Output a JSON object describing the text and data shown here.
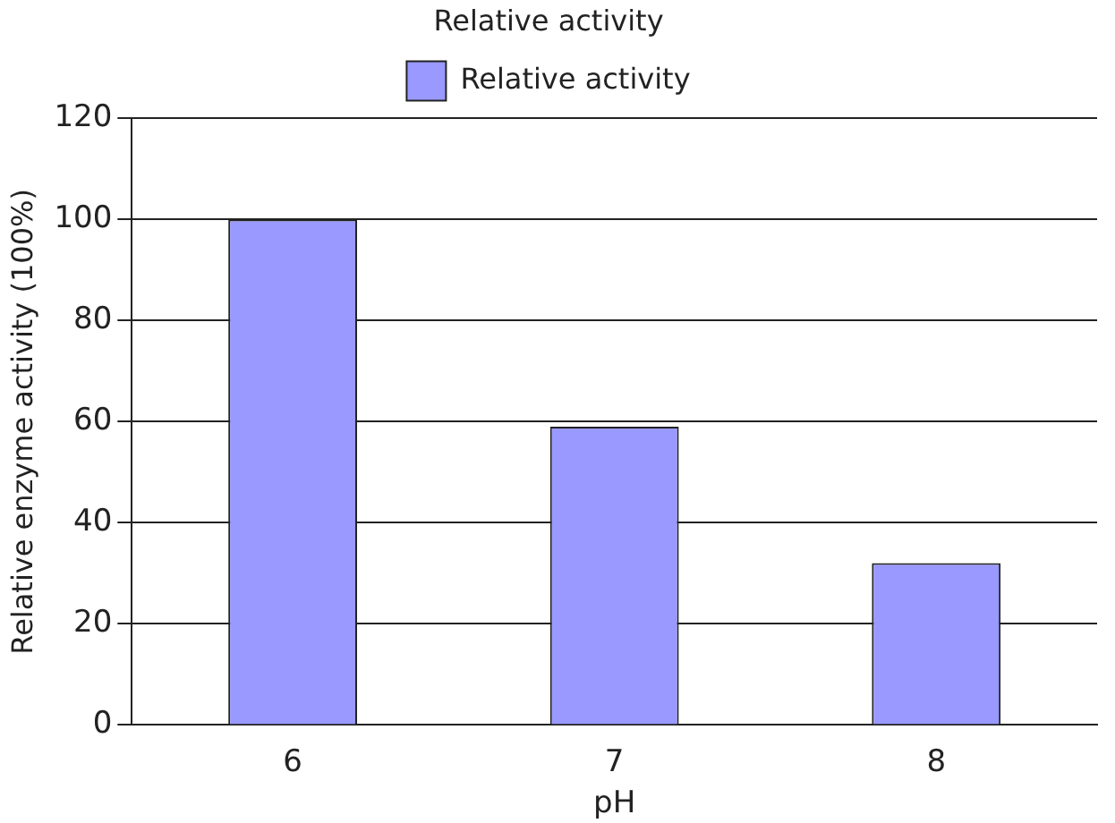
{
  "chart_data": {
    "type": "bar",
    "legend_title": "Relative activity",
    "xlabel": "pH",
    "ylabel": "Relative enzyme activity (100%)",
    "categories": [
      "6",
      "7",
      "8"
    ],
    "series": [
      {
        "name": "Relative activity",
        "color": "#9999ff",
        "values": [
          100,
          59,
          32
        ]
      }
    ],
    "ylim": [
      0,
      120
    ],
    "yticks": [
      0,
      20,
      40,
      60,
      80,
      100,
      120
    ],
    "grid": "y",
    "legend": "top"
  }
}
